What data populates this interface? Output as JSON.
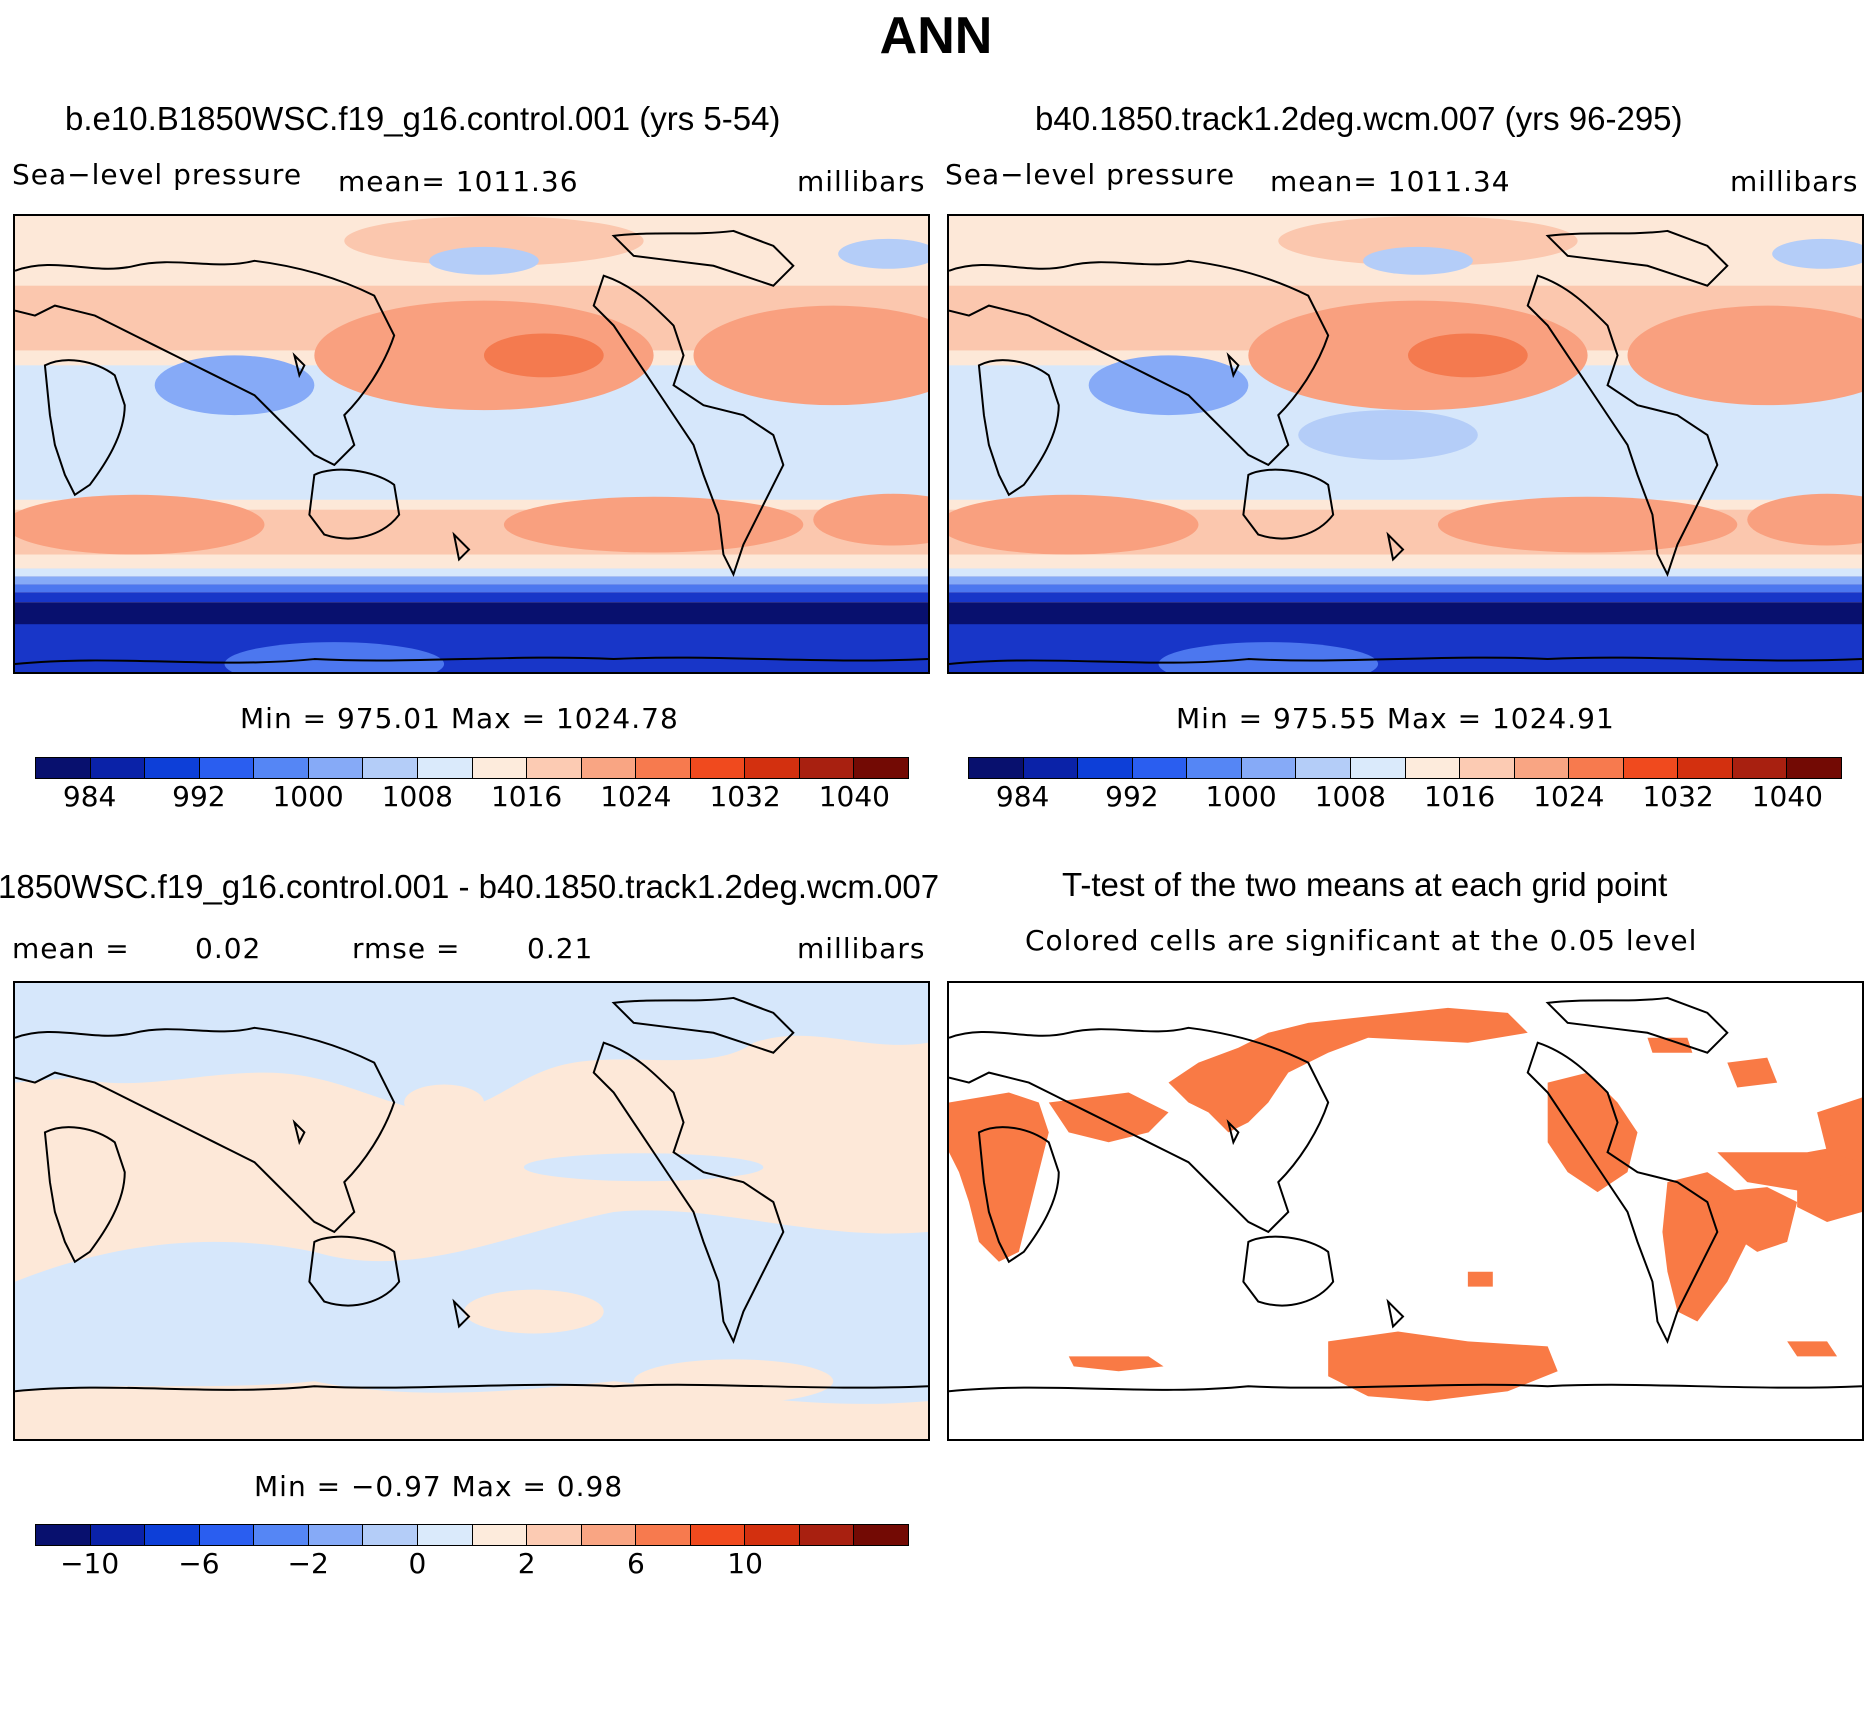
{
  "title": "ANN",
  "panels": {
    "p1": {
      "title": "b.e10.B1850WSC.f19_g16.control.001 (yrs 5-54)",
      "left_label": "Sea−level pressure",
      "center_label": "mean= 1011.36",
      "right_label": "millibars",
      "stats": "Min = 975.01 Max = 1024.78"
    },
    "p2": {
      "title": "b40.1850.track1.2deg.wcm.007 (yrs 96-295)",
      "left_label": "Sea−level pressure",
      "center_label": "mean= 1011.34",
      "right_label": "millibars",
      "stats": "Min = 975.55 Max = 1024.91"
    },
    "p3": {
      "title": "1850WSC.f19_g16.control.001 - b40.1850.track1.2deg.wcm.007",
      "mean_label": "mean =",
      "mean_value": "0.02",
      "rmse_label": "rmse =",
      "rmse_value": "0.21",
      "right_label": "millibars",
      "stats": "Min = −0.97 Max = 0.98"
    },
    "p4": {
      "title": "T-test of the two means at each grid point",
      "subtitle": "Colored cells are significant at the 0.05 level"
    }
  },
  "colorbars": {
    "pressure": {
      "colors": [
        "#08106e",
        "#0a22a8",
        "#0d3fd8",
        "#2a5ef0",
        "#5586f5",
        "#86aaf7",
        "#b4cdf8",
        "#daeafb",
        "#fdebdc",
        "#fccbb3",
        "#f9a583",
        "#f77a4e",
        "#f04a1e",
        "#d3300f",
        "#a82010",
        "#730a04"
      ],
      "labels": [
        "984",
        "992",
        "1000",
        "1008",
        "1016",
        "1024",
        "1032",
        "1040"
      ]
    },
    "diff": {
      "colors": [
        "#08106e",
        "#0a22a8",
        "#0d3fd8",
        "#2a5ef0",
        "#5586f5",
        "#86aaf7",
        "#b4cdf8",
        "#daeafb",
        "#fdebdc",
        "#fccbb3",
        "#f9a583",
        "#f77a4e",
        "#f04a1e",
        "#d3300f",
        "#a82010",
        "#730a04"
      ],
      "labels": [
        "−10",
        "−6",
        "−2",
        "0",
        "2",
        "6",
        "10"
      ]
    }
  },
  "map_colors": {
    "light_blue": "#d6e7fb",
    "pale_orange": "#fde8d8",
    "salmon": "#fbc7ae",
    "orange": "#f9a07f",
    "dark_orange": "#f47a4f",
    "navy": "#08106e",
    "blue": "#1836c8",
    "mid_blue": "#4c77ef",
    "sig_orange": "#f97a45"
  }
}
